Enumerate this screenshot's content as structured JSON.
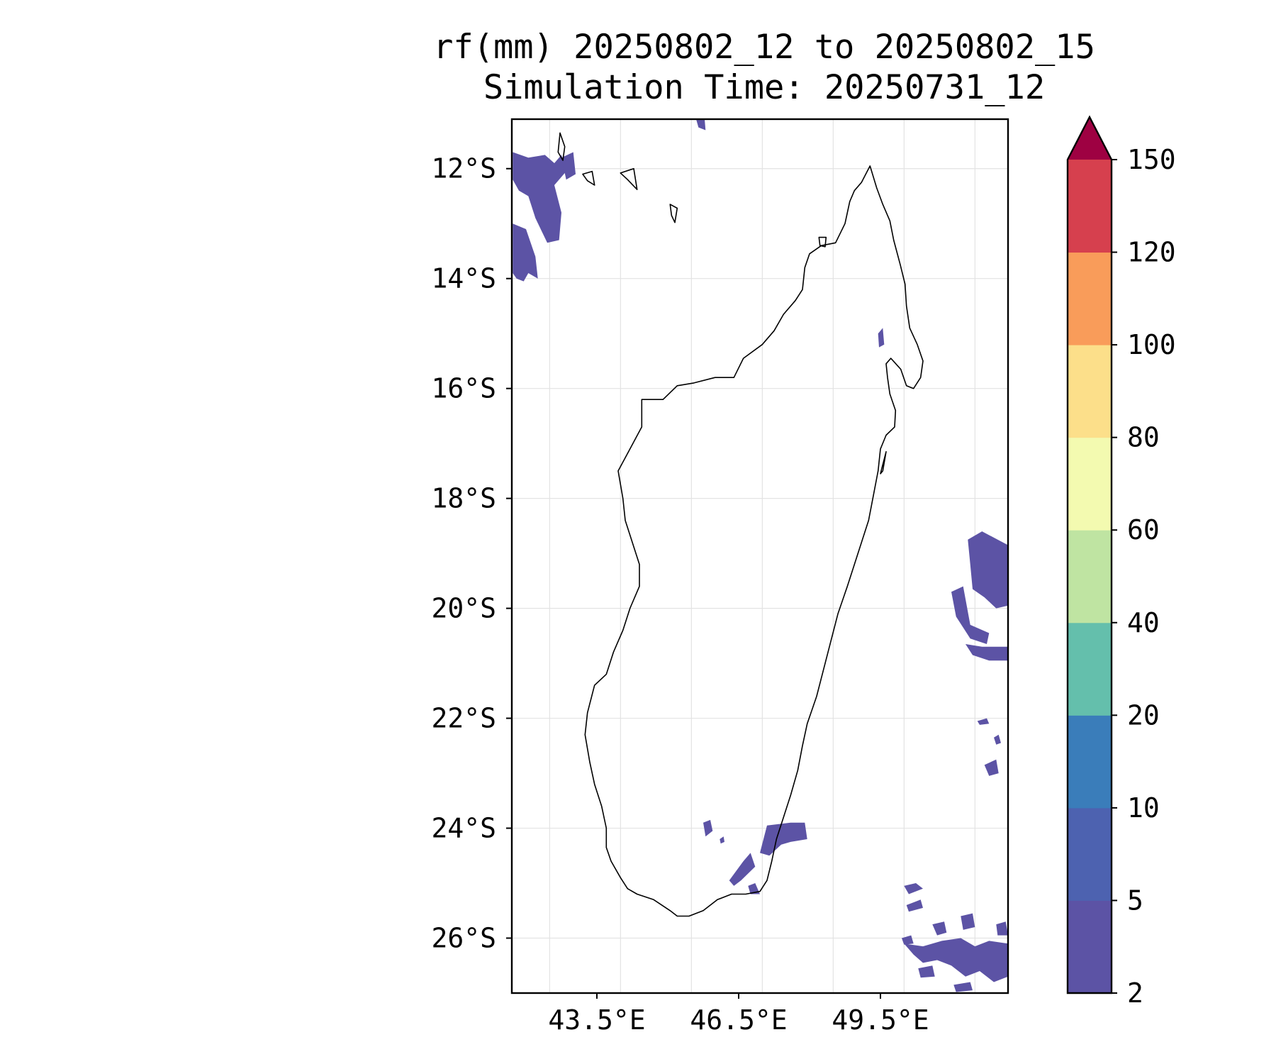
{
  "title": {
    "line1": "rf(mm) 20250802_12 to 20250802_15",
    "line2": "Simulation Time: 20250731_12"
  },
  "map": {
    "lon_range": [
      41.7,
      52.2
    ],
    "lat_range": [
      -27.0,
      -11.1
    ],
    "lon_ticks": [
      {
        "value": 43.5,
        "label": "43.5°E"
      },
      {
        "value": 46.5,
        "label": "46.5°E"
      },
      {
        "value": 49.5,
        "label": "49.5°E"
      }
    ],
    "lat_ticks": [
      {
        "value": -12,
        "label": "12°S"
      },
      {
        "value": -14,
        "label": "14°S"
      },
      {
        "value": -16,
        "label": "16°S"
      },
      {
        "value": -18,
        "label": "18°S"
      },
      {
        "value": -20,
        "label": "20°S"
      },
      {
        "value": -22,
        "label": "22°S"
      },
      {
        "value": -24,
        "label": "24°S"
      },
      {
        "value": -26,
        "label": "26°S"
      }
    ],
    "grid_lons": [
      42.5,
      44.0,
      45.5,
      47.0,
      48.5,
      50.0,
      51.5
    ],
    "grid_lats": [
      -12,
      -14,
      -16,
      -18,
      -20,
      -22,
      -24,
      -26
    ],
    "gridlines": true,
    "rain_color": "#5c53a5",
    "coastline": [
      [
        49.28,
        -11.95
      ],
      [
        49.35,
        -12.15
      ],
      [
        49.42,
        -12.35
      ],
      [
        49.55,
        -12.65
      ],
      [
        49.7,
        -12.95
      ],
      [
        49.78,
        -13.3
      ],
      [
        49.92,
        -13.75
      ],
      [
        50.02,
        -14.1
      ],
      [
        50.05,
        -14.5
      ],
      [
        50.12,
        -14.9
      ],
      [
        50.28,
        -15.2
      ],
      [
        50.4,
        -15.5
      ],
      [
        50.35,
        -15.8
      ],
      [
        50.2,
        -16.0
      ],
      [
        50.05,
        -15.95
      ],
      [
        49.93,
        -15.65
      ],
      [
        49.72,
        -15.45
      ],
      [
        49.62,
        -15.55
      ],
      [
        49.65,
        -15.8
      ],
      [
        49.7,
        -16.1
      ],
      [
        49.82,
        -16.4
      ],
      [
        49.8,
        -16.7
      ],
      [
        49.62,
        -16.85
      ],
      [
        49.5,
        -17.1
      ],
      [
        49.45,
        -17.5
      ],
      [
        49.35,
        -17.95
      ],
      [
        49.25,
        -18.4
      ],
      [
        49.1,
        -18.8
      ],
      [
        48.95,
        -19.2
      ],
      [
        48.8,
        -19.6
      ],
      [
        48.6,
        -20.1
      ],
      [
        48.45,
        -20.6
      ],
      [
        48.3,
        -21.1
      ],
      [
        48.15,
        -21.6
      ],
      [
        47.95,
        -22.1
      ],
      [
        47.85,
        -22.5
      ],
      [
        47.75,
        -22.95
      ],
      [
        47.6,
        -23.4
      ],
      [
        47.45,
        -23.8
      ],
      [
        47.3,
        -24.2
      ],
      [
        47.2,
        -24.6
      ],
      [
        47.1,
        -24.95
      ],
      [
        46.95,
        -25.15
      ],
      [
        46.65,
        -25.2
      ],
      [
        46.35,
        -25.2
      ],
      [
        46.05,
        -25.3
      ],
      [
        45.75,
        -25.5
      ],
      [
        45.45,
        -25.6
      ],
      [
        45.2,
        -25.6
      ],
      [
        45.05,
        -25.5
      ],
      [
        44.7,
        -25.3
      ],
      [
        44.35,
        -25.2
      ],
      [
        44.15,
        -25.1
      ],
      [
        44.0,
        -24.9
      ],
      [
        43.8,
        -24.6
      ],
      [
        43.7,
        -24.35
      ],
      [
        43.7,
        -24.0
      ],
      [
        43.6,
        -23.6
      ],
      [
        43.45,
        -23.2
      ],
      [
        43.35,
        -22.8
      ],
      [
        43.25,
        -22.3
      ],
      [
        43.3,
        -21.9
      ],
      [
        43.45,
        -21.4
      ],
      [
        43.7,
        -21.2
      ],
      [
        43.85,
        -20.8
      ],
      [
        44.05,
        -20.4
      ],
      [
        44.2,
        -20.0
      ],
      [
        44.4,
        -19.6
      ],
      [
        44.4,
        -19.2
      ],
      [
        44.25,
        -18.8
      ],
      [
        44.1,
        -18.4
      ],
      [
        44.05,
        -18.0
      ],
      [
        43.95,
        -17.5
      ],
      [
        44.2,
        -17.1
      ],
      [
        44.45,
        -16.7
      ],
      [
        44.45,
        -16.2
      ],
      [
        44.9,
        -16.2
      ],
      [
        45.2,
        -15.95
      ],
      [
        45.55,
        -15.9
      ],
      [
        46.0,
        -15.8
      ],
      [
        46.4,
        -15.8
      ],
      [
        46.6,
        -15.45
      ],
      [
        47.0,
        -15.2
      ],
      [
        47.25,
        -14.95
      ],
      [
        47.45,
        -14.65
      ],
      [
        47.7,
        -14.4
      ],
      [
        47.85,
        -14.2
      ],
      [
        47.9,
        -13.8
      ],
      [
        48.0,
        -13.55
      ],
      [
        48.25,
        -13.4
      ],
      [
        48.55,
        -13.35
      ],
      [
        48.75,
        -13.0
      ],
      [
        48.85,
        -12.6
      ],
      [
        48.95,
        -12.4
      ],
      [
        49.1,
        -12.25
      ],
      [
        49.28,
        -11.95
      ]
    ],
    "islands": [
      [
        [
          42.72,
          -11.35
        ],
        [
          42.82,
          -11.6
        ],
        [
          42.78,
          -11.85
        ],
        [
          42.68,
          -11.7
        ],
        [
          42.72,
          -11.35
        ]
      ],
      [
        [
          43.2,
          -12.1
        ],
        [
          43.4,
          -12.05
        ],
        [
          43.45,
          -12.3
        ],
        [
          43.3,
          -12.22
        ],
        [
          43.2,
          -12.1
        ]
      ],
      [
        [
          44.0,
          -12.08
        ],
        [
          44.28,
          -12.0
        ],
        [
          44.35,
          -12.38
        ],
        [
          44.15,
          -12.2
        ],
        [
          44.0,
          -12.08
        ]
      ],
      [
        [
          45.05,
          -12.65
        ],
        [
          45.2,
          -12.72
        ],
        [
          45.15,
          -12.98
        ],
        [
          45.08,
          -12.85
        ],
        [
          45.05,
          -12.65
        ]
      ],
      [
        [
          49.62,
          -17.15
        ],
        [
          49.5,
          -17.55
        ],
        [
          49.55,
          -17.5
        ],
        [
          49.62,
          -17.15
        ]
      ],
      [
        [
          48.2,
          -13.25
        ],
        [
          48.35,
          -13.25
        ],
        [
          48.33,
          -13.42
        ],
        [
          48.22,
          -13.4
        ],
        [
          48.2,
          -13.25
        ]
      ]
    ],
    "rain_patches": [
      [
        [
          41.72,
          -11.7
        ],
        [
          42.05,
          -11.8
        ],
        [
          42.4,
          -11.75
        ],
        [
          42.6,
          -11.9
        ],
        [
          42.75,
          -11.75
        ],
        [
          42.85,
          -12.05
        ],
        [
          42.6,
          -12.3
        ],
        [
          42.75,
          -12.8
        ],
        [
          42.7,
          -13.3
        ],
        [
          42.45,
          -13.35
        ],
        [
          42.2,
          -12.9
        ],
        [
          42.05,
          -12.5
        ],
        [
          41.85,
          -12.4
        ],
        [
          41.72,
          -12.2
        ]
      ],
      [
        [
          41.72,
          -13.0
        ],
        [
          42.0,
          -13.1
        ],
        [
          42.2,
          -13.6
        ],
        [
          42.25,
          -14.0
        ],
        [
          42.05,
          -13.9
        ],
        [
          41.95,
          -14.05
        ],
        [
          41.8,
          -14.0
        ],
        [
          41.72,
          -13.9
        ]
      ],
      [
        [
          42.75,
          -11.8
        ],
        [
          43.0,
          -11.7
        ],
        [
          43.05,
          -12.1
        ],
        [
          42.85,
          -12.2
        ]
      ],
      [
        [
          45.6,
          -11.1
        ],
        [
          45.78,
          -11.1
        ],
        [
          45.8,
          -11.3
        ],
        [
          45.65,
          -11.25
        ]
      ],
      [
        [
          49.45,
          -15.0
        ],
        [
          49.55,
          -14.9
        ],
        [
          49.58,
          -15.2
        ],
        [
          49.47,
          -15.25
        ]
      ],
      [
        [
          51.35,
          -18.75
        ],
        [
          51.65,
          -18.6
        ],
        [
          52.2,
          -18.85
        ],
        [
          52.2,
          -19.95
        ],
        [
          51.95,
          -20.0
        ],
        [
          51.7,
          -19.8
        ],
        [
          51.45,
          -19.65
        ],
        [
          51.4,
          -19.2
        ]
      ],
      [
        [
          51.0,
          -19.7
        ],
        [
          51.25,
          -19.6
        ],
        [
          51.4,
          -20.3
        ],
        [
          51.8,
          -20.45
        ],
        [
          51.75,
          -20.65
        ],
        [
          51.4,
          -20.55
        ],
        [
          51.1,
          -20.15
        ]
      ],
      [
        [
          51.3,
          -20.65
        ],
        [
          51.65,
          -20.7
        ],
        [
          52.2,
          -20.7
        ],
        [
          52.2,
          -20.95
        ],
        [
          51.8,
          -20.95
        ],
        [
          51.45,
          -20.85
        ]
      ],
      [
        [
          51.55,
          -22.05
        ],
        [
          51.75,
          -22.0
        ],
        [
          51.8,
          -22.1
        ],
        [
          51.6,
          -22.12
        ]
      ],
      [
        [
          51.9,
          -22.35
        ],
        [
          52.0,
          -22.3
        ],
        [
          52.05,
          -22.45
        ],
        [
          51.95,
          -22.48
        ]
      ],
      [
        [
          51.7,
          -22.85
        ],
        [
          51.95,
          -22.75
        ],
        [
          52.0,
          -23.0
        ],
        [
          51.8,
          -23.05
        ]
      ],
      [
        [
          45.75,
          -23.9
        ],
        [
          45.9,
          -23.85
        ],
        [
          45.95,
          -24.05
        ],
        [
          45.8,
          -24.15
        ]
      ],
      [
        [
          46.1,
          -24.2
        ],
        [
          46.18,
          -24.15
        ],
        [
          46.2,
          -24.25
        ],
        [
          46.12,
          -24.28
        ]
      ],
      [
        [
          47.1,
          -23.95
        ],
        [
          47.6,
          -23.9
        ],
        [
          47.9,
          -23.9
        ],
        [
          47.95,
          -24.2
        ],
        [
          47.6,
          -24.25
        ],
        [
          47.4,
          -24.3
        ],
        [
          47.15,
          -24.5
        ],
        [
          46.95,
          -24.45
        ]
      ],
      [
        [
          46.3,
          -24.95
        ],
        [
          46.6,
          -24.6
        ],
        [
          46.75,
          -24.45
        ],
        [
          46.85,
          -24.7
        ],
        [
          46.55,
          -24.95
        ],
        [
          46.4,
          -25.05
        ]
      ],
      [
        [
          46.7,
          -25.05
        ],
        [
          46.85,
          -25.0
        ],
        [
          46.95,
          -25.2
        ],
        [
          46.75,
          -25.2
        ]
      ],
      [
        [
          50.0,
          -25.05
        ],
        [
          50.25,
          -25.0
        ],
        [
          50.4,
          -25.1
        ],
        [
          50.1,
          -25.2
        ]
      ],
      [
        [
          50.05,
          -25.4
        ],
        [
          50.35,
          -25.3
        ],
        [
          50.4,
          -25.45
        ],
        [
          50.1,
          -25.52
        ]
      ],
      [
        [
          50.6,
          -25.75
        ],
        [
          50.85,
          -25.7
        ],
        [
          50.9,
          -25.9
        ],
        [
          50.7,
          -25.95
        ]
      ],
      [
        [
          51.2,
          -25.6
        ],
        [
          51.45,
          -25.55
        ],
        [
          51.5,
          -25.8
        ],
        [
          51.25,
          -25.85
        ]
      ],
      [
        [
          50.0,
          -26.1
        ],
        [
          50.4,
          -26.15
        ],
        [
          50.8,
          -26.05
        ],
        [
          51.2,
          -26.0
        ],
        [
          51.5,
          -26.15
        ],
        [
          51.8,
          -26.05
        ],
        [
          52.2,
          -26.1
        ],
        [
          52.2,
          -26.7
        ],
        [
          51.9,
          -26.8
        ],
        [
          51.6,
          -26.6
        ],
        [
          51.3,
          -26.7
        ],
        [
          51.0,
          -26.5
        ],
        [
          50.7,
          -26.4
        ],
        [
          50.4,
          -26.45
        ],
        [
          50.2,
          -26.3
        ]
      ],
      [
        [
          49.95,
          -26.0
        ],
        [
          50.15,
          -25.95
        ],
        [
          50.2,
          -26.1
        ],
        [
          50.0,
          -26.12
        ]
      ],
      [
        [
          51.05,
          -26.85
        ],
        [
          51.4,
          -26.8
        ],
        [
          51.45,
          -26.95
        ],
        [
          51.1,
          -26.98
        ]
      ],
      [
        [
          50.3,
          -26.55
        ],
        [
          50.6,
          -26.5
        ],
        [
          50.65,
          -26.7
        ],
        [
          50.35,
          -26.72
        ]
      ],
      [
        [
          51.95,
          -25.75
        ],
        [
          52.15,
          -25.7
        ],
        [
          52.2,
          -25.95
        ],
        [
          51.98,
          -25.95
        ]
      ]
    ]
  },
  "colorbar": {
    "levels": [
      2,
      5,
      10,
      20,
      40,
      60,
      80,
      100,
      120,
      150
    ],
    "tick_labels": [
      "2",
      "5",
      "10",
      "20",
      "40",
      "60",
      "80",
      "100",
      "120",
      "150"
    ],
    "colors": [
      "#5c53a5",
      "#4d62b0",
      "#3a7dba",
      "#64bfac",
      "#bfe4a2",
      "#f3fab0",
      "#fcdf8a",
      "#f99c5a",
      "#d6404e"
    ],
    "extend_color": "#9e0142",
    "extend": "max"
  }
}
